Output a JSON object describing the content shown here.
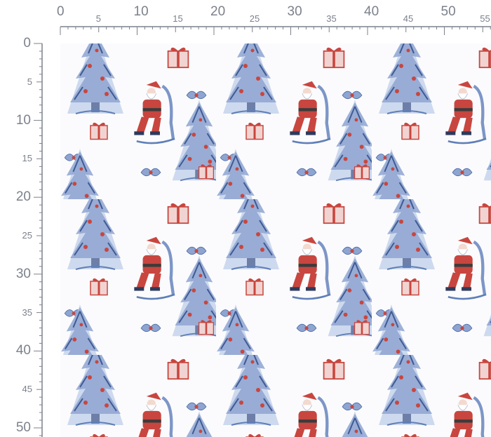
{
  "ruler": {
    "unit": "CM",
    "horizontal_ticks": [
      "0",
      "5",
      "10",
      "15",
      "20",
      "25",
      "30",
      "35",
      "40",
      "45",
      "50",
      "55"
    ],
    "vertical_ticks": [
      "0",
      "5",
      "10",
      "15",
      "20",
      "25",
      "30",
      "35",
      "40",
      "45",
      "50"
    ]
  },
  "fabric": {
    "pattern": "christmas-toile",
    "motifs": [
      "santa-rocking-chair-icon",
      "christmas-tree-icon",
      "gift-box-icon",
      "holly-sprig-icon"
    ],
    "colors": {
      "print_blue": "#5f7fb8",
      "print_red": "#c8463f",
      "background": "#fbfbfd"
    }
  }
}
